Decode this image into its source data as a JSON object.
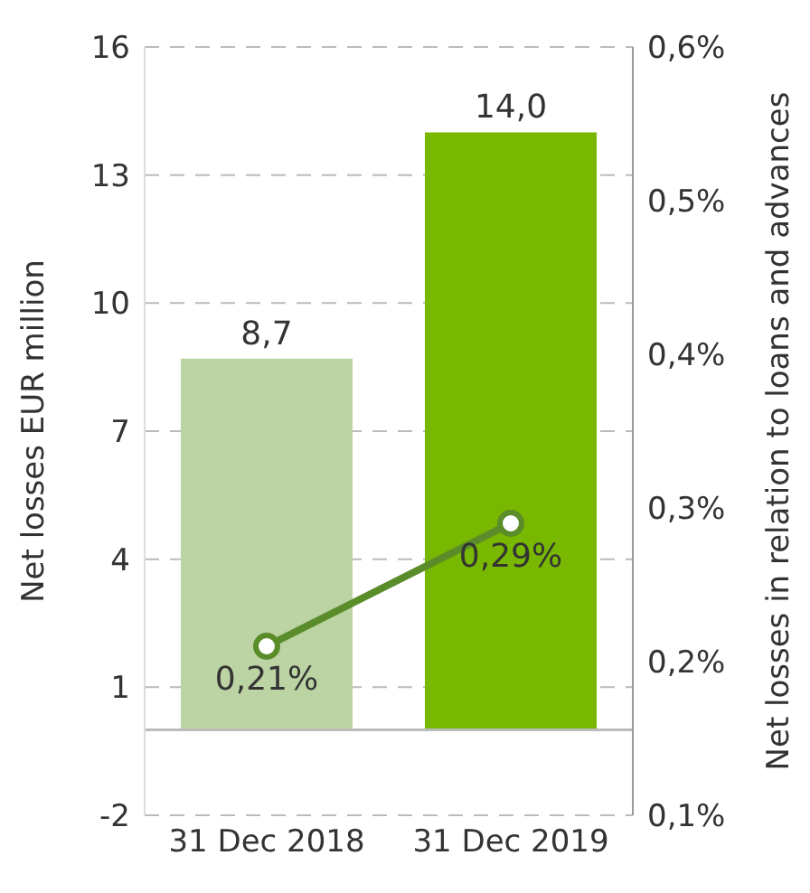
{
  "chart_data": {
    "type": "bar",
    "ylabel": "Net losses EUR million",
    "y2label": "Net losses in relation to loans and advances",
    "categories": [
      "31 Dec 2018",
      "31 Dec 2019"
    ],
    "series": [
      {
        "colors": [
          "#bcd3a4",
          "#78b800"
        ],
        "values": [
          8.7,
          14.0
        ],
        "value_labels": [
          "8,7",
          "14,0"
        ]
      },
      {
        "type": "line",
        "axis": "y2",
        "color": "#5b8c2a",
        "marker": "circle",
        "values": [
          0.21,
          0.29
        ],
        "value_labels": [
          "0,21%",
          "0,29%"
        ]
      }
    ],
    "ylim": [
      -2,
      16
    ],
    "yticks": [
      -2,
      1,
      4,
      7,
      10,
      13,
      16
    ],
    "y2lim": [
      0.1,
      0.6
    ],
    "y2ticks": [
      {
        "value": 0.1,
        "label": "0,1%"
      },
      {
        "value": 0.2,
        "label": "0,2%"
      },
      {
        "value": 0.3,
        "label": "0,3%"
      },
      {
        "value": 0.4,
        "label": "0,4%"
      },
      {
        "value": 0.5,
        "label": "0,5%"
      },
      {
        "value": 0.6,
        "label": "0,6%"
      }
    ],
    "grid": "y",
    "ref_lines": [
      {
        "axis": "y",
        "value": 0,
        "color": "#bbbbbb"
      }
    ]
  }
}
